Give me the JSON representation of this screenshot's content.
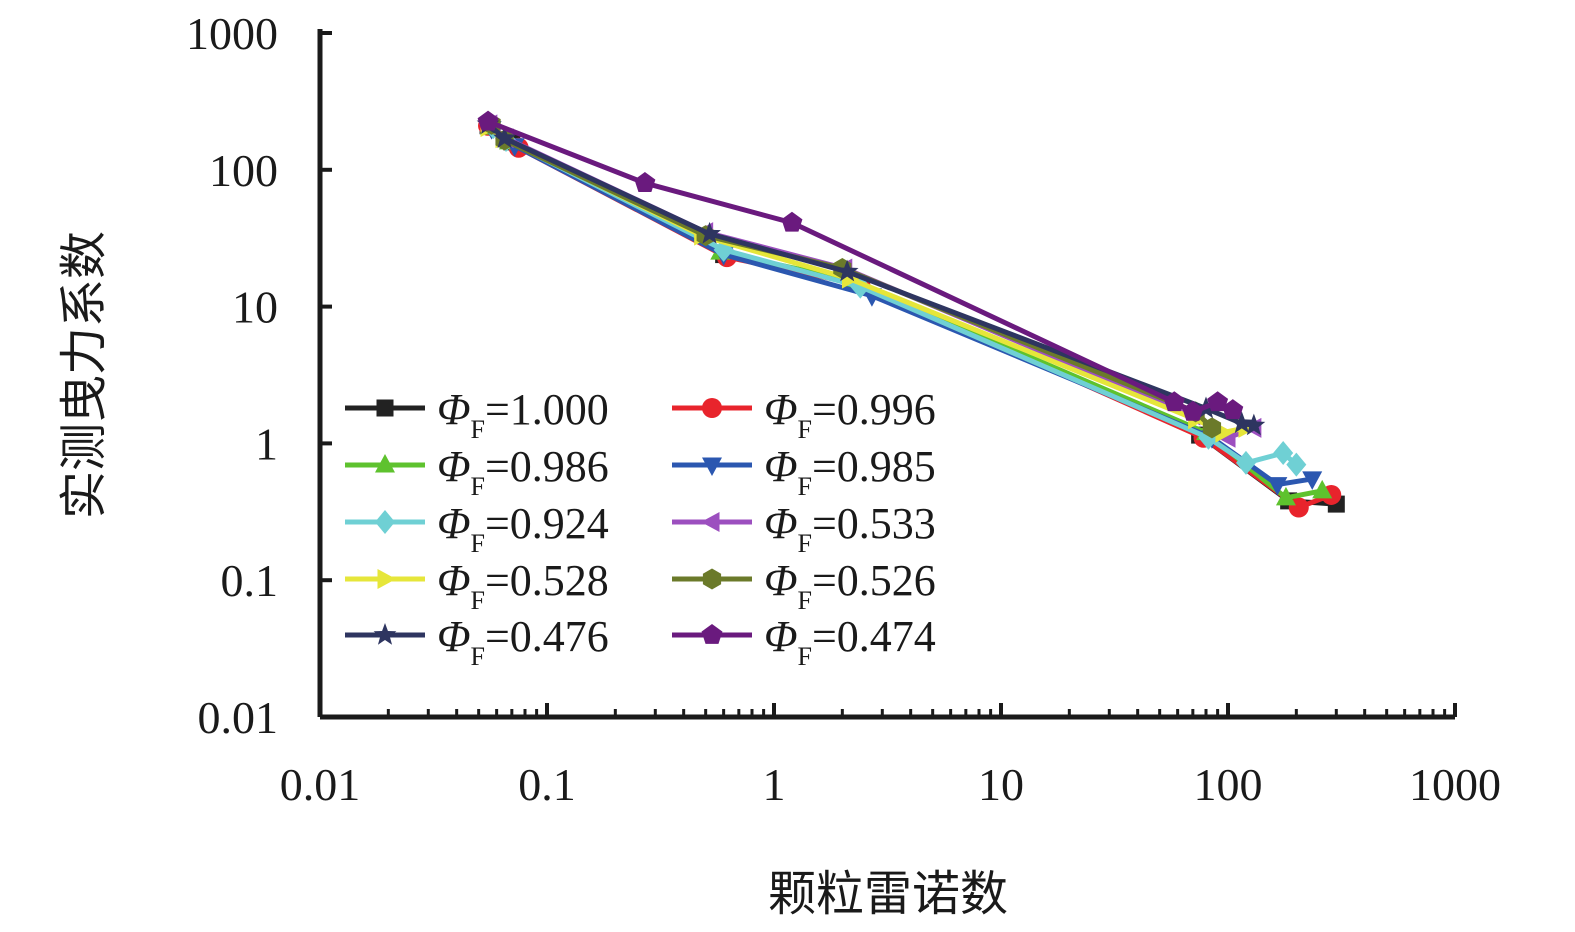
{
  "chart_data": {
    "type": "line",
    "xlabel": "颗粒雷诺数",
    "ylabel": "实测曳力系数",
    "xscale": "log",
    "yscale": "log",
    "xlim": [
      0.01,
      1000
    ],
    "ylim": [
      0.01,
      1000
    ],
    "x_ticks": [
      "0.01",
      "0.1",
      "1",
      "10",
      "100",
      "1000"
    ],
    "y_ticks": [
      "0.01",
      "0.1",
      "1",
      "10",
      "100",
      "1000"
    ],
    "grid": false,
    "legend_position": "lower-left inside plot, two columns",
    "series": [
      {
        "name": "ΦF=1.000",
        "name_main": "Φ",
        "name_sub": "F",
        "name_value": "=1.000",
        "color": "#222222",
        "marker": "square",
        "x": [
          0.055,
          0.07,
          0.6,
          2.3,
          75,
          185,
          300
        ],
        "y": [
          210,
          160,
          24,
          15,
          1.15,
          0.38,
          0.36
        ]
      },
      {
        "name": "ΦF=0.996",
        "name_main": "Φ",
        "name_sub": "F",
        "name_value": "=0.996",
        "color": "#e8242c",
        "marker": "circle",
        "x": [
          0.055,
          0.075,
          0.62,
          2.4,
          78,
          205,
          285
        ],
        "y": [
          210,
          145,
          23,
          14.5,
          1.1,
          0.34,
          0.42
        ]
      },
      {
        "name": "ΦF=0.986",
        "name_main": "Φ",
        "name_sub": "F",
        "name_value": "=0.986",
        "color": "#5ec22e",
        "marker": "triangle-up",
        "x": [
          0.056,
          0.068,
          0.58,
          2.2,
          80,
          180,
          260
        ],
        "y": [
          205,
          160,
          25,
          15.5,
          1.2,
          0.4,
          0.45
        ]
      },
      {
        "name": "ΦF=0.985",
        "name_main": "Φ",
        "name_sub": "F",
        "name_value": "=0.985",
        "color": "#2b57b0",
        "marker": "triangle-down",
        "x": [
          0.057,
          0.072,
          0.6,
          2.7,
          85,
          165,
          235
        ],
        "y": [
          200,
          150,
          24,
          12,
          1.1,
          0.5,
          0.55
        ]
      },
      {
        "name": "ΦF=0.924",
        "name_main": "Φ",
        "name_sub": "F",
        "name_value": "=0.924",
        "color": "#6fd0d4",
        "marker": "diamond",
        "x": [
          0.058,
          0.066,
          0.6,
          2.4,
          82,
          120,
          175,
          200
        ],
        "y": [
          205,
          165,
          26,
          14,
          1.1,
          0.72,
          0.85,
          0.7
        ]
      },
      {
        "name": "ΦF=0.533",
        "name_main": "Φ",
        "name_sub": "F",
        "name_value": "=0.533",
        "color": "#9c4fbf",
        "marker": "triangle-left",
        "x": [
          0.056,
          0.066,
          0.5,
          2.05,
          70,
          100,
          130
        ],
        "y": [
          215,
          170,
          35,
          19,
          1.6,
          1.1,
          1.3
        ]
      },
      {
        "name": "ΦF=0.528",
        "name_main": "Φ",
        "name_sub": "F",
        "name_value": "=0.528",
        "color": "#e6e63a",
        "marker": "triangle-right",
        "x": [
          0.055,
          0.064,
          0.48,
          2.15,
          72,
          95,
          120
        ],
        "y": [
          205,
          170,
          33,
          16,
          1.5,
          1.2,
          1.3
        ]
      },
      {
        "name": "ΦF=0.526",
        "name_main": "Φ",
        "name_sub": "F",
        "name_value": "=0.526",
        "color": "#6b7a2a",
        "marker": "hexagon",
        "x": [
          0.057,
          0.065,
          0.5,
          2.0,
          72,
          85
        ],
        "y": [
          215,
          165,
          33,
          19,
          1.7,
          1.3
        ]
      },
      {
        "name": "ΦF=0.476",
        "name_main": "Φ",
        "name_sub": "F",
        "name_value": "=0.476",
        "color": "#2e3560",
        "marker": "star",
        "x": [
          0.055,
          0.065,
          0.52,
          2.1,
          80,
          115,
          130
        ],
        "y": [
          215,
          170,
          34,
          18,
          1.8,
          1.4,
          1.35
        ]
      },
      {
        "name": "ΦF=0.474",
        "name_main": "Φ",
        "name_sub": "F",
        "name_value": "=0.474",
        "color": "#6a1a7e",
        "marker": "pentagon",
        "x": [
          0.055,
          0.27,
          1.2,
          58,
          70,
          90,
          105
        ],
        "y": [
          225,
          80,
          41,
          2.0,
          1.7,
          2.0,
          1.75
        ]
      }
    ]
  }
}
